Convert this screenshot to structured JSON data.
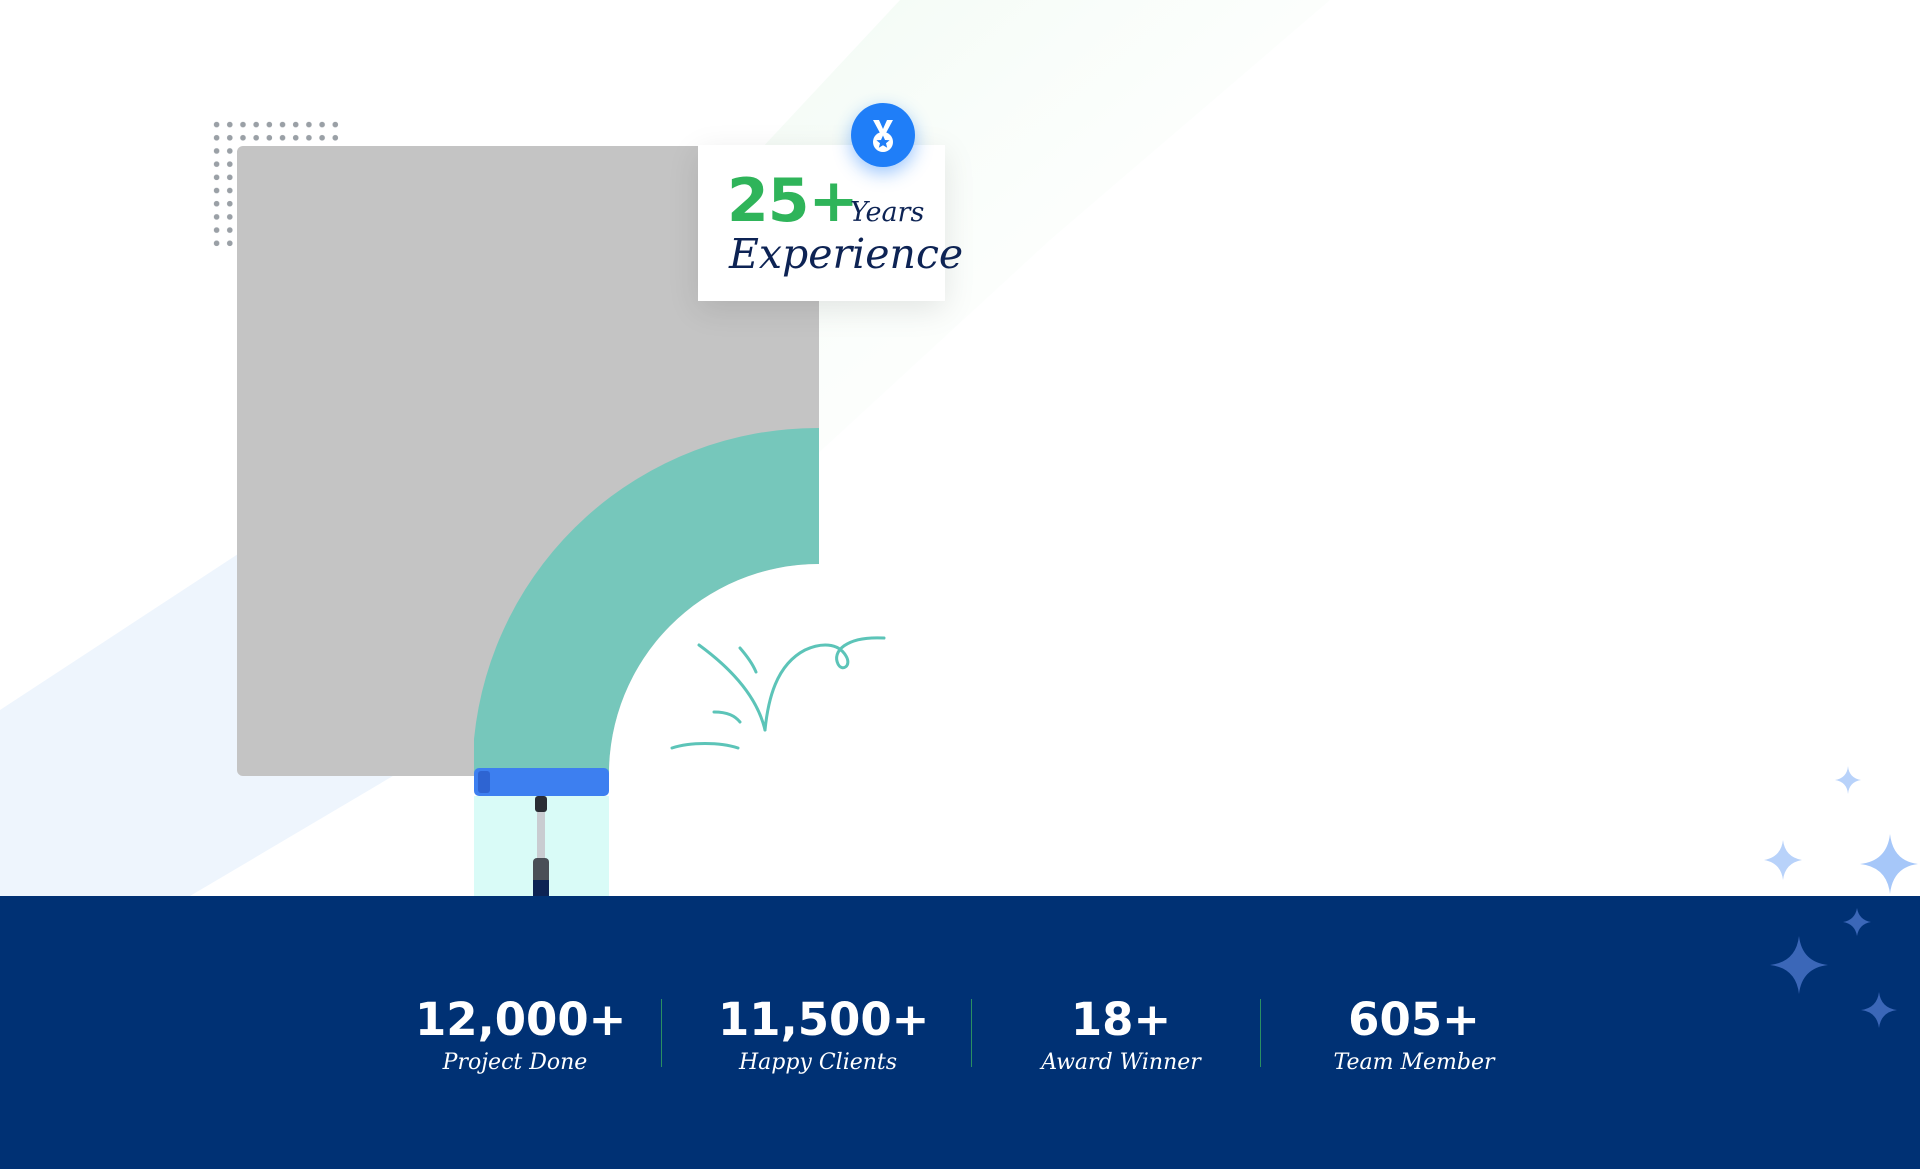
{
  "experience": {
    "number": "25+",
    "years_label": "Years",
    "label": "Experience",
    "badge_icon": "medal-icon"
  },
  "stats": [
    {
      "value": "12,000+",
      "label": "Project Done"
    },
    {
      "value": "11,500+",
      "label": "Happy Clients"
    },
    {
      "value": "18+",
      "label": "Award Winner"
    },
    {
      "value": "605+",
      "label": "Team Member"
    }
  ],
  "colors": {
    "stats_background": "#003174",
    "accent_green": "#2fb45a",
    "badge_blue": "#1f7ef8",
    "arch_teal": "#76c7bb",
    "heading_navy": "#0d2354"
  },
  "icons": [
    "medal-icon",
    "sparkle-icon",
    "grass-doodle-icon",
    "paint-roller-icon"
  ]
}
